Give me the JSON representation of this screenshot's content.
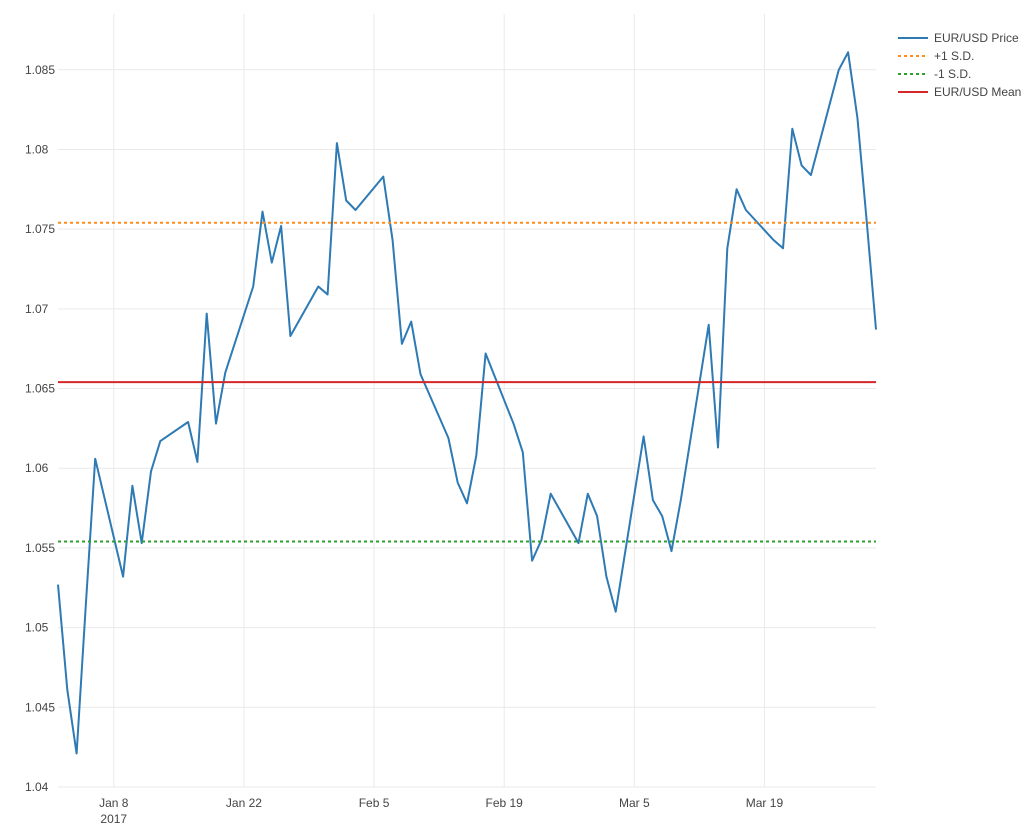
{
  "chart_data": {
    "type": "line",
    "title": "",
    "xlabel": "",
    "ylabel": "",
    "xlim": [
      "2017-01-02",
      "2017-03-31"
    ],
    "ylim": [
      1.04,
      1.0885
    ],
    "grid": true,
    "legend_position": "top-right",
    "y_ticks": [
      {
        "value": 1.04,
        "label": "1.04"
      },
      {
        "value": 1.045,
        "label": "1.045"
      },
      {
        "value": 1.05,
        "label": "1.05"
      },
      {
        "value": 1.055,
        "label": "1.055"
      },
      {
        "value": 1.06,
        "label": "1.06"
      },
      {
        "value": 1.065,
        "label": "1.065"
      },
      {
        "value": 1.07,
        "label": "1.07"
      },
      {
        "value": 1.075,
        "label": "1.075"
      },
      {
        "value": 1.08,
        "label": "1.08"
      },
      {
        "value": 1.085,
        "label": "1.085"
      }
    ],
    "x_ticks": [
      {
        "date": "2017-01-08",
        "label": "Jan 8",
        "sublabel": "2017"
      },
      {
        "date": "2017-01-22",
        "label": "Jan 22",
        "sublabel": ""
      },
      {
        "date": "2017-02-05",
        "label": "Feb 5",
        "sublabel": ""
      },
      {
        "date": "2017-02-19",
        "label": "Feb 19",
        "sublabel": ""
      },
      {
        "date": "2017-03-05",
        "label": "Mar 5",
        "sublabel": ""
      },
      {
        "date": "2017-03-19",
        "label": "Mar 19",
        "sublabel": ""
      }
    ],
    "series": [
      {
        "name": "EUR/USD Price",
        "color": "#2e7ab4",
        "style": "solid",
        "points": [
          [
            "2017-01-02",
            1.0527
          ],
          [
            "2017-01-03",
            1.0461
          ],
          [
            "2017-01-04",
            1.0421
          ],
          [
            "2017-01-05",
            1.0515
          ],
          [
            "2017-01-06",
            1.0606
          ],
          [
            "2017-01-09",
            1.0532
          ],
          [
            "2017-01-10",
            1.0589
          ],
          [
            "2017-01-11",
            1.0553
          ],
          [
            "2017-01-12",
            1.0598
          ],
          [
            "2017-01-13",
            1.0617
          ],
          [
            "2017-01-16",
            1.0629
          ],
          [
            "2017-01-17",
            1.0604
          ],
          [
            "2017-01-18",
            1.0697
          ],
          [
            "2017-01-19",
            1.0628
          ],
          [
            "2017-01-20",
            1.066
          ],
          [
            "2017-01-23",
            1.0714
          ],
          [
            "2017-01-24",
            1.0761
          ],
          [
            "2017-01-25",
            1.0729
          ],
          [
            "2017-01-26",
            1.0752
          ],
          [
            "2017-01-27",
            1.0683
          ],
          [
            "2017-01-30",
            1.0714
          ],
          [
            "2017-01-31",
            1.0709
          ],
          [
            "2017-02-01",
            1.0804
          ],
          [
            "2017-02-02",
            1.0768
          ],
          [
            "2017-02-03",
            1.0762
          ],
          [
            "2017-02-06",
            1.0783
          ],
          [
            "2017-02-07",
            1.0743
          ],
          [
            "2017-02-08",
            1.0678
          ],
          [
            "2017-02-09",
            1.0692
          ],
          [
            "2017-02-10",
            1.0659
          ],
          [
            "2017-02-13",
            1.0619
          ],
          [
            "2017-02-14",
            1.0591
          ],
          [
            "2017-02-15",
            1.0578
          ],
          [
            "2017-02-16",
            1.0608
          ],
          [
            "2017-02-17",
            1.0672
          ],
          [
            "2017-02-20",
            1.0628
          ],
          [
            "2017-02-21",
            1.061
          ],
          [
            "2017-02-22",
            1.0542
          ],
          [
            "2017-02-23",
            1.0555
          ],
          [
            "2017-02-24",
            1.0584
          ],
          [
            "2017-02-27",
            1.0553
          ],
          [
            "2017-02-28",
            1.0584
          ],
          [
            "2017-03-01",
            1.057
          ],
          [
            "2017-03-02",
            1.0532
          ],
          [
            "2017-03-03",
            1.051
          ],
          [
            "2017-03-06",
            1.062
          ],
          [
            "2017-03-07",
            1.058
          ],
          [
            "2017-03-08",
            1.057
          ],
          [
            "2017-03-09",
            1.0548
          ],
          [
            "2017-03-10",
            1.058
          ],
          [
            "2017-03-13",
            1.069
          ],
          [
            "2017-03-14",
            1.0613
          ],
          [
            "2017-03-15",
            1.0738
          ],
          [
            "2017-03-16",
            1.0775
          ],
          [
            "2017-03-17",
            1.0762
          ],
          [
            "2017-03-20",
            1.0743
          ],
          [
            "2017-03-21",
            1.0738
          ],
          [
            "2017-03-22",
            1.0813
          ],
          [
            "2017-03-23",
            1.079
          ],
          [
            "2017-03-24",
            1.0784
          ],
          [
            "2017-03-27",
            1.085
          ],
          [
            "2017-03-28",
            1.0861
          ],
          [
            "2017-03-29",
            1.082
          ],
          [
            "2017-03-30",
            1.0755
          ],
          [
            "2017-03-31",
            1.0687
          ]
        ]
      },
      {
        "name": "+1 S.D.",
        "color": "#ff8c1a",
        "style": "dotted",
        "constant": 1.0754
      },
      {
        "name": "-1 S.D.",
        "color": "#2ca02c",
        "style": "dotted",
        "constant": 1.0554
      },
      {
        "name": "EUR/USD Mean",
        "color": "#d62728",
        "style": "solid",
        "constant": 1.0654
      }
    ]
  }
}
